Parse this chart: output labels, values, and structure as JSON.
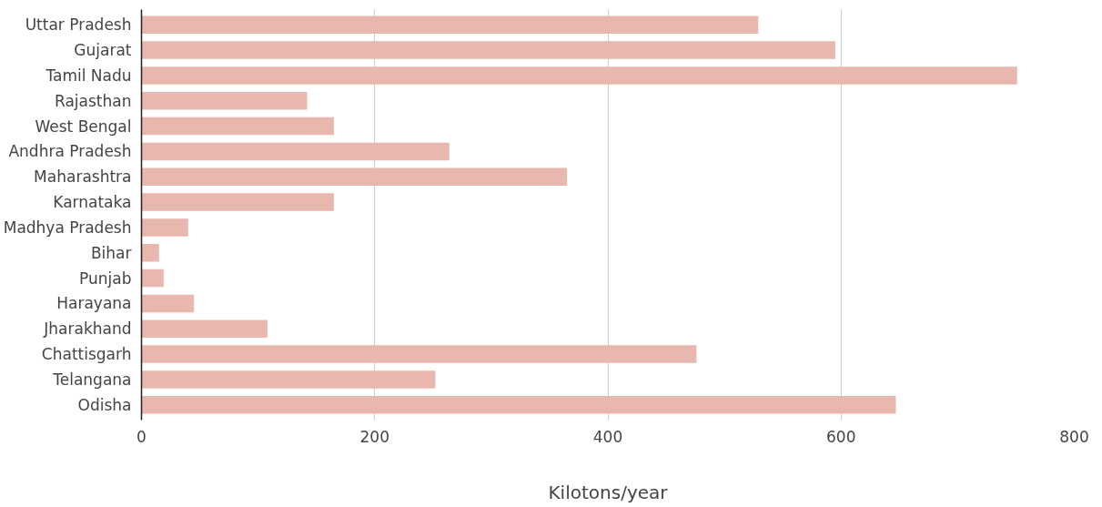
{
  "chart_data": {
    "type": "bar",
    "orientation": "horizontal",
    "xlabel": "Kilotons/year",
    "categories": [
      "Uttar Pradesh",
      "Gujarat",
      "Tamil Nadu",
      "Rajasthan",
      "West Bengal",
      "Andhra Pradesh",
      "Maharashtra",
      "Karnataka",
      "Madhya Pradesh",
      "Bihar",
      "Punjab",
      "Harayana",
      "Jharakhand",
      "Chattisgarh",
      "Telangana",
      "Odisha"
    ],
    "values": [
      529,
      595,
      751,
      142,
      165,
      264,
      365,
      165,
      40,
      15,
      19,
      45,
      108,
      476,
      252,
      647
    ],
    "color": "#e8b7ae",
    "xlim": [
      0,
      800
    ],
    "xticks": [
      0,
      200,
      400,
      600,
      800
    ],
    "grid": "x"
  }
}
